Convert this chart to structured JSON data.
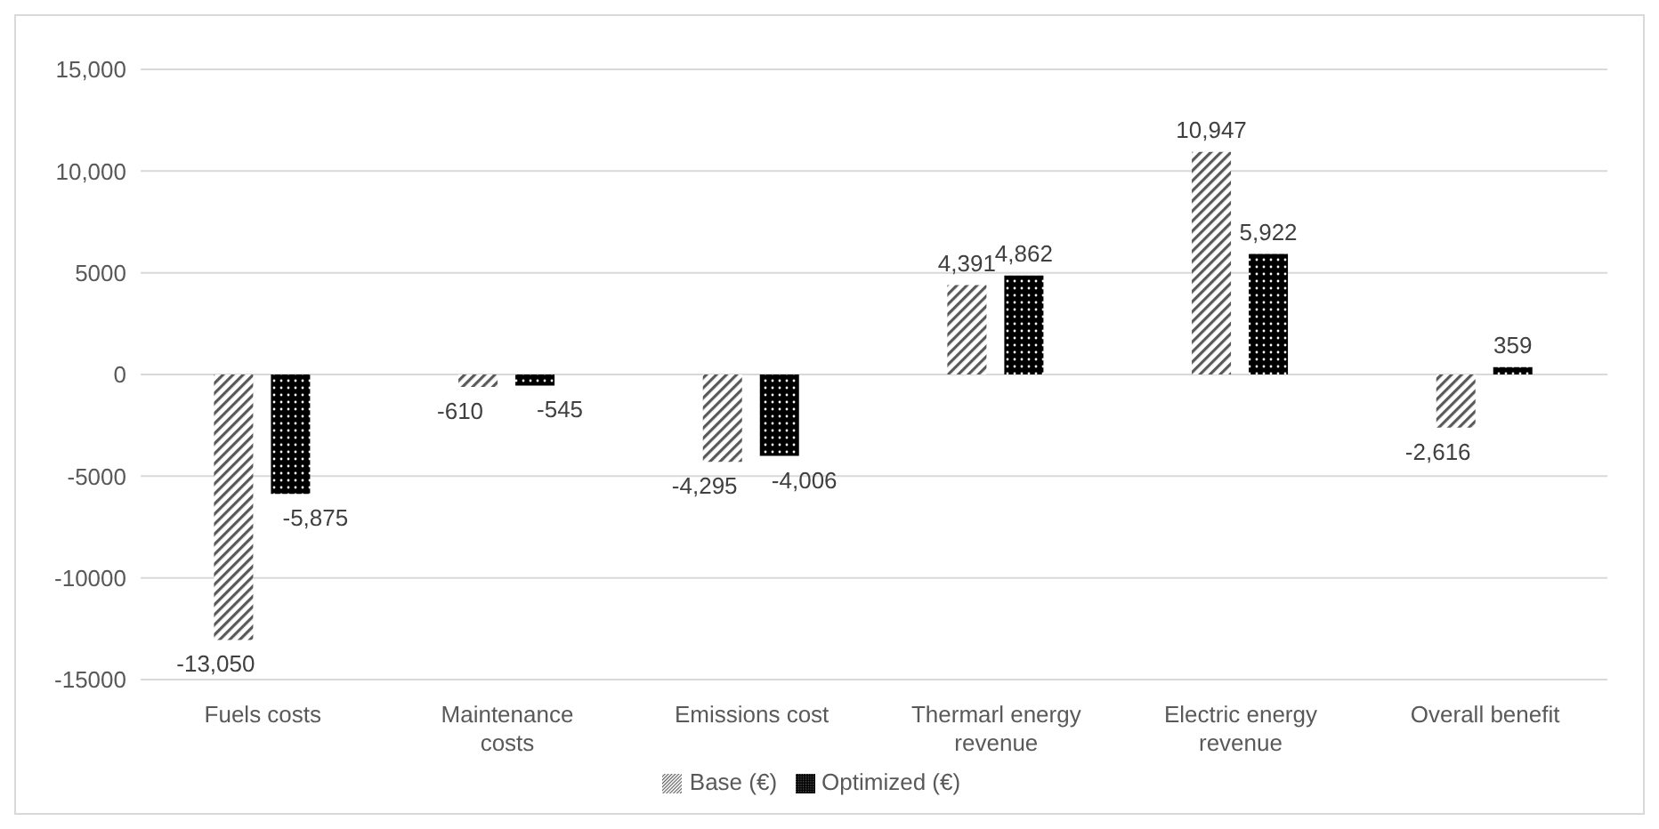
{
  "chart_data": {
    "type": "bar",
    "categories": [
      "Fuels costs",
      "Maintenance costs",
      "Emissions cost",
      "Thermarl energy revenue",
      "Electric energy revenue",
      "Overall benefit"
    ],
    "series": [
      {
        "name": "Base (€)",
        "color": "#595959",
        "values": [
          -13050,
          -610,
          -4295,
          4391,
          10947,
          -2616
        ],
        "value_labels": [
          "-13,050",
          "-610",
          "-4,295",
          "4,391",
          "10,947",
          "-2,616"
        ]
      },
      {
        "name": "Optimized (€)",
        "color": "#000000",
        "values": [
          -5875,
          -545,
          -4006,
          4862,
          5922,
          359
        ],
        "value_labels": [
          "-5,875",
          "-545",
          "-4,006",
          "4,862",
          "5,922",
          "359"
        ]
      }
    ],
    "ylim": [
      -15000,
      15000
    ],
    "yticks": [
      {
        "value": -15000,
        "label": "-15000"
      },
      {
        "value": -10000,
        "label": "-10000"
      },
      {
        "value": -5000,
        "label": "-5000"
      },
      0,
      {
        "value": 5000,
        "label": "5000"
      },
      {
        "value": 10000,
        "label": "10,000"
      },
      {
        "value": 15000,
        "label": "15,000"
      }
    ],
    "grid": "y",
    "legend": "bottom"
  }
}
